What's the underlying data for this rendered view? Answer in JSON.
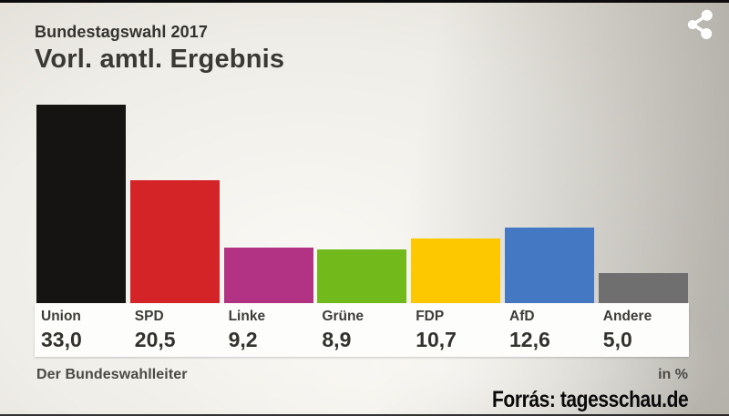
{
  "header": {
    "kicker": "Bundestagswahl 2017",
    "title": "Vorl. amtl. Ergebnis"
  },
  "footer": {
    "source": "Der Bundeswahlleiter",
    "unit": "in %"
  },
  "watermark": "Forrás: tagesschau.de",
  "icons": {
    "share": "share-icon"
  },
  "colors": {
    "background_light": "#f9f8f4",
    "background_dark": "#b0aea6",
    "label_band": "#fdfdfb",
    "text_dark": "#34332f",
    "watermark_text": "#0a0a0a",
    "share_icon": "#ffffff"
  },
  "chart_data": {
    "type": "bar",
    "title": "Vorl. amtl. Ergebnis",
    "subtitle": "Bundestagswahl 2017",
    "unit": "in %",
    "categories": [
      "Union",
      "SPD",
      "Linke",
      "Grüne",
      "FDP",
      "AfD",
      "Andere"
    ],
    "values": [
      33.0,
      20.5,
      9.2,
      8.9,
      10.7,
      12.6,
      5.0
    ],
    "display_values": [
      "33,0",
      "20,5",
      "9,2",
      "8,9",
      "10,7",
      "12,6",
      "5,0"
    ],
    "colors": [
      "#161412",
      "#d42427",
      "#b23283",
      "#72ba1c",
      "#fdc800",
      "#4478c2",
      "#706f6f"
    ],
    "ylim": [
      0,
      35
    ],
    "grid": false,
    "legend": "none",
    "value_label_position": "below bars in white band"
  }
}
